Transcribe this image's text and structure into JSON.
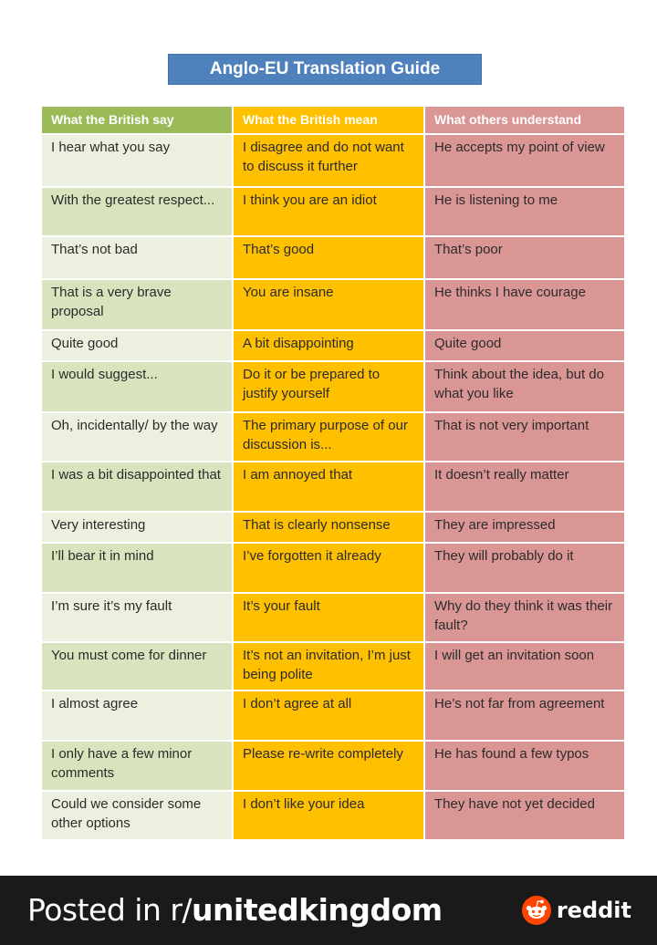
{
  "title": "Anglo-EU Translation Guide",
  "columns": [
    "What the British say",
    "What the British mean",
    "What others understand"
  ],
  "rows": [
    [
      "I hear what you say",
      "I disagree and do not want to discuss it further",
      "He accepts my point of view"
    ],
    [
      "With the greatest respect...",
      "I think you are an idiot",
      "He is listening to me"
    ],
    [
      "That’s not bad",
      "That’s good",
      "That’s poor"
    ],
    [
      "That is a very brave proposal",
      "You are insane",
      "He thinks I have courage"
    ],
    [
      "Quite good",
      "A bit disappointing",
      "Quite good"
    ],
    [
      "I would suggest...",
      "Do it or be prepared to justify yourself",
      "Think about the idea, but do what you like"
    ],
    [
      "Oh, incidentally/ by the way",
      "The primary purpose of our discussion is...",
      "That is not very important"
    ],
    [
      "I was a bit disappointed that",
      "I am annoyed that",
      "It doesn’t really matter"
    ],
    [
      "Very interesting",
      "That is clearly nonsense",
      "They are impressed"
    ],
    [
      "I’ll bear it in mind",
      "I’ve forgotten it already",
      "They will probably do it"
    ],
    [
      "I’m sure it’s my fault",
      "It’s your fault",
      "Why do they think it was their fault?"
    ],
    [
      "You must come for dinner",
      "It’s not an invitation, I’m just being polite",
      "I will get an invitation soon"
    ],
    [
      "I almost agree",
      "I don’t agree at all",
      "He’s not far from agreement"
    ],
    [
      "I only have a few minor comments",
      "Please re-write completely",
      "He has found a few typos"
    ],
    [
      "Could we consider some other options",
      "I don’t like your idea",
      "They have not yet decided"
    ]
  ],
  "footer": {
    "posted_prefix": "Posted in r/",
    "subreddit": "unitedkingdom",
    "brand": "reddit",
    "brand_icon": "reddit-alien-icon"
  },
  "colors": {
    "title_bg": "#4f81bd",
    "col1_header": "#9bbb59",
    "col2_header": "#ffc000",
    "col3_header": "#da9694",
    "col1_cell": "#ebf1de",
    "col2_cell": "#ffc000",
    "col3_cell": "#da9694",
    "footer_bg": "#1a1a1b",
    "reddit_orange": "#ff4500"
  }
}
